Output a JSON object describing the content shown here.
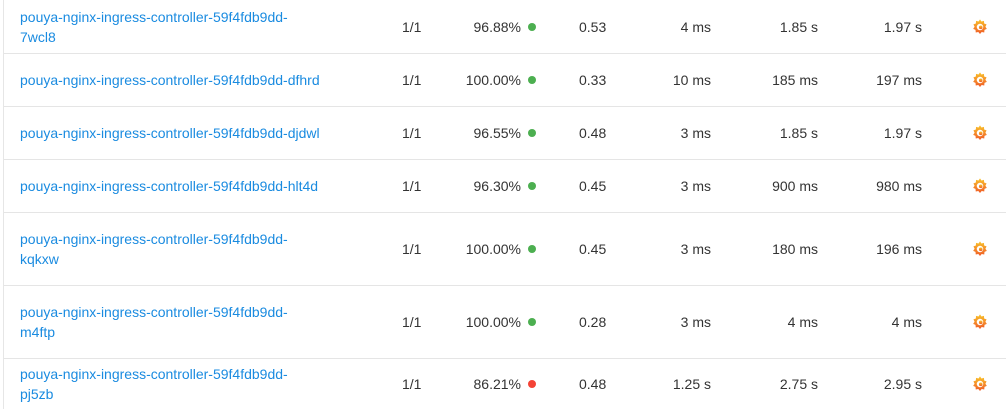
{
  "rows": [
    {
      "name": "pouya-nginx-ingress-controller-59f4fdb9dd-7wcl8",
      "ready": "1/1",
      "success": "96.88%",
      "status_color": "#4caf50",
      "rps": "0.53",
      "p50": "4 ms",
      "p90": "1.85 s",
      "p99": "1.97 s",
      "icon": "grafana-icon"
    },
    {
      "name": "pouya-nginx-ingress-controller-59f4fdb9dd-dfhrd",
      "ready": "1/1",
      "success": "100.00%",
      "status_color": "#4caf50",
      "rps": "0.33",
      "p50": "10 ms",
      "p90": "185 ms",
      "p99": "197 ms",
      "icon": "grafana-icon"
    },
    {
      "name": "pouya-nginx-ingress-controller-59f4fdb9dd-djdwl",
      "ready": "1/1",
      "success": "96.55%",
      "status_color": "#4caf50",
      "rps": "0.48",
      "p50": "3 ms",
      "p90": "1.85 s",
      "p99": "1.97 s",
      "icon": "grafana-icon"
    },
    {
      "name": "pouya-nginx-ingress-controller-59f4fdb9dd-hlt4d",
      "ready": "1/1",
      "success": "96.30%",
      "status_color": "#4caf50",
      "rps": "0.45",
      "p50": "3 ms",
      "p90": "900 ms",
      "p99": "980 ms",
      "icon": "grafana-icon"
    },
    {
      "name": "pouya-nginx-ingress-controller-59f4fdb9dd-kqkxw",
      "ready": "1/1",
      "success": "100.00%",
      "status_color": "#4caf50",
      "rps": "0.45",
      "p50": "3 ms",
      "p90": "180 ms",
      "p99": "196 ms",
      "icon": "grafana-icon"
    },
    {
      "name": "pouya-nginx-ingress-controller-59f4fdb9dd-m4ftp",
      "ready": "1/1",
      "success": "100.00%",
      "status_color": "#4caf50",
      "rps": "0.28",
      "p50": "3 ms",
      "p90": "4 ms",
      "p99": "4 ms",
      "icon": "grafana-icon"
    },
    {
      "name": "pouya-nginx-ingress-controller-59f4fdb9dd-pj5zb",
      "ready": "1/1",
      "success": "86.21%",
      "status_color": "#f44336",
      "rps": "0.48",
      "p50": "1.25 s",
      "p90": "2.75 s",
      "p99": "2.95 s",
      "icon": "grafana-icon"
    }
  ]
}
